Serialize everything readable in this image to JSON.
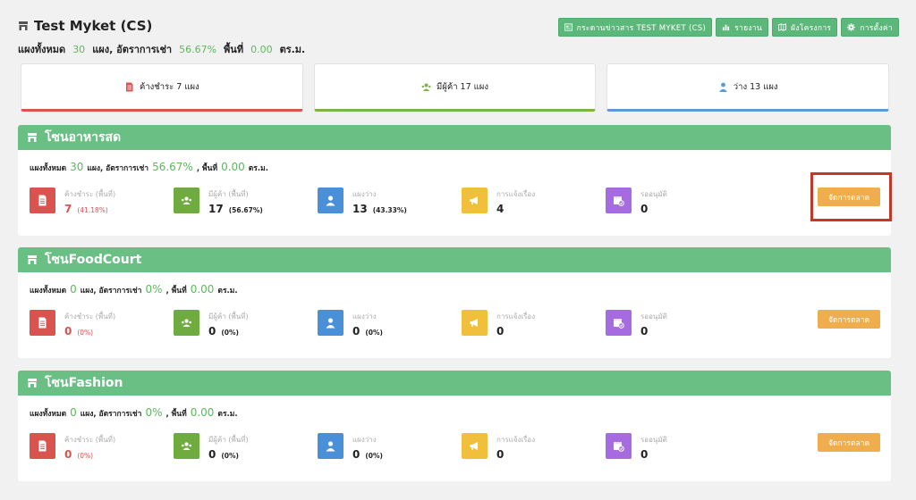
{
  "header": {
    "title": "Test Myket (CS)",
    "summary": {
      "total_label": "แผงทั้งหมด",
      "total": "30",
      "unit_label": "แผง, อัตราการเช่า",
      "rate": "56.67%",
      "area_label": "พื้นที่",
      "area": "0.00",
      "area_unit": "ตร.ม."
    },
    "actions": [
      {
        "label": "กระดานข่าวสาร TEST MYKET (CS)",
        "icon": "newspaper-icon"
      },
      {
        "label": "รายงาน",
        "icon": "chart-icon"
      },
      {
        "label": "ผังโครงการ",
        "icon": "map-icon"
      },
      {
        "label": "การตั้งค่า",
        "icon": "gear-icon"
      }
    ]
  },
  "stat_cards": [
    {
      "label": "ค้างชำระ 7 แผง",
      "icon": "invoice-icon",
      "color": "#d9534f"
    },
    {
      "label": "มีผู้ค้า 17 แผง",
      "icon": "users-icon",
      "color": "#7cb342"
    },
    {
      "label": "ว่าง 13 แผง",
      "icon": "user-icon",
      "color": "#5b9bd5"
    }
  ],
  "metric_labels": {
    "overdue": "ค้างชำระ (พื้นที่)",
    "tenants": "มีผู้ค้า (พื้นที่)",
    "vacant": "แผงว่าง",
    "reports": "การแจ้งเรื่อง",
    "pending": "รออนุมัติ"
  },
  "zone_summary_labels": {
    "total_label": "แผงทั้งหมด",
    "unit_label": "แผง, อัตราการเช่า",
    "area_label": ", พื้นที่",
    "area_unit": "ตร.ม."
  },
  "manage_label": "จัดการตลาด",
  "zones": [
    {
      "name": "โซนอาหารสด",
      "total": "30",
      "rate": "56.67%",
      "area": "0.00",
      "overdue": "7",
      "overdue_pct": "(41.18%)",
      "tenants": "17",
      "tenants_pct": "(56.67%)",
      "vacant": "13",
      "vacant_pct": "(43.33%)",
      "reports": "4",
      "pending": "0"
    },
    {
      "name": "โซนFoodCourt",
      "total": "0",
      "rate": "0%",
      "area": "0.00",
      "overdue": "0",
      "overdue_pct": "(0%)",
      "tenants": "0",
      "tenants_pct": "(0%)",
      "vacant": "0",
      "vacant_pct": "(0%)",
      "reports": "0",
      "pending": "0"
    },
    {
      "name": "โซนFashion",
      "total": "0",
      "rate": "0%",
      "area": "0.00",
      "overdue": "0",
      "overdue_pct": "(0%)",
      "tenants": "0",
      "tenants_pct": "(0%)",
      "vacant": "0",
      "vacant_pct": "(0%)",
      "reports": "0",
      "pending": "0"
    }
  ]
}
